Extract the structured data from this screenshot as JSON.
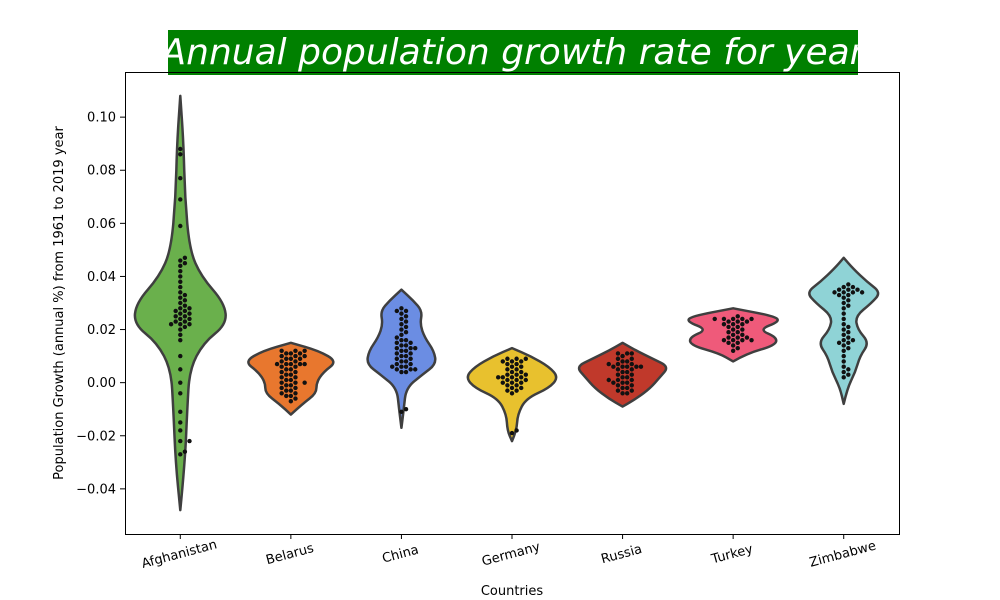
{
  "chart_data": {
    "type": "violin",
    "title": "Annual population growth rate for year",
    "title_bg_color": "#008000",
    "title_color": "#ffffff",
    "xlabel": "Countries",
    "ylabel": "Population Growth (annual %) from 1961 to 2019 year",
    "ylim": [
      -0.057,
      0.117
    ],
    "yticks": [
      -0.04,
      -0.02,
      0.0,
      0.02,
      0.04,
      0.06,
      0.08,
      0.1
    ],
    "ytick_labels": [
      "−0.04",
      "−0.02",
      "0.00",
      "0.02",
      "0.04",
      "0.06",
      "0.08",
      "0.10"
    ],
    "grid": false,
    "categories": [
      "Afghanistan",
      "Belarus",
      "China",
      "Germany",
      "Russia",
      "Turkey",
      "Zimbabwe"
    ],
    "colors": [
      "#6ab04c",
      "#e8772e",
      "#6b8de3",
      "#e8c12e",
      "#c0392b",
      "#ef5a7a",
      "#8fd3d6"
    ],
    "violins": [
      {
        "name": "Afghanistan",
        "min": -0.048,
        "max": 0.108,
        "profile": [
          [
            -0.048,
            0.0
          ],
          [
            -0.03,
            0.1
          ],
          [
            -0.01,
            0.15
          ],
          [
            0.005,
            0.2
          ],
          [
            0.015,
            0.5
          ],
          [
            0.022,
            1.0
          ],
          [
            0.03,
            0.95
          ],
          [
            0.04,
            0.45
          ],
          [
            0.05,
            0.2
          ],
          [
            0.07,
            0.1
          ],
          [
            0.09,
            0.07
          ],
          [
            0.108,
            0.0
          ]
        ],
        "points": [
          -0.027,
          -0.026,
          -0.022,
          -0.022,
          -0.018,
          -0.015,
          -0.011,
          -0.004,
          0.0,
          0.005,
          0.01,
          0.016,
          0.018,
          0.02,
          0.021,
          0.022,
          0.022,
          0.022,
          0.023,
          0.023,
          0.024,
          0.024,
          0.025,
          0.025,
          0.026,
          0.026,
          0.027,
          0.027,
          0.028,
          0.028,
          0.029,
          0.03,
          0.031,
          0.032,
          0.033,
          0.034,
          0.036,
          0.038,
          0.04,
          0.042,
          0.044,
          0.045,
          0.046,
          0.047,
          0.059,
          0.069,
          0.077,
          0.086,
          0.088
        ]
      },
      {
        "name": "Belarus",
        "min": -0.012,
        "max": 0.015,
        "profile": [
          [
            -0.012,
            0.0
          ],
          [
            -0.008,
            0.25
          ],
          [
            -0.004,
            0.55
          ],
          [
            0.0,
            0.55
          ],
          [
            0.004,
            0.7
          ],
          [
            0.008,
            1.0
          ],
          [
            0.012,
            0.6
          ],
          [
            0.015,
            0.0
          ]
        ],
        "points": [
          -0.007,
          -0.006,
          -0.005,
          -0.005,
          -0.004,
          -0.004,
          -0.003,
          -0.003,
          -0.002,
          -0.002,
          -0.001,
          -0.001,
          0.0,
          0.0,
          0.0,
          0.001,
          0.001,
          0.002,
          0.002,
          0.003,
          0.003,
          0.004,
          0.004,
          0.005,
          0.005,
          0.006,
          0.006,
          0.007,
          0.007,
          0.007,
          0.007,
          0.007,
          0.008,
          0.008,
          0.009,
          0.009,
          0.009,
          0.01,
          0.01,
          0.01,
          0.011,
          0.011,
          0.011,
          0.012,
          0.012,
          0.012
        ]
      },
      {
        "name": "China",
        "min": -0.017,
        "max": 0.035,
        "profile": [
          [
            -0.017,
            0.0
          ],
          [
            -0.01,
            0.05
          ],
          [
            -0.002,
            0.1
          ],
          [
            0.003,
            0.45
          ],
          [
            0.007,
            0.75
          ],
          [
            0.012,
            0.7
          ],
          [
            0.017,
            0.5
          ],
          [
            0.022,
            0.4
          ],
          [
            0.027,
            0.45
          ],
          [
            0.031,
            0.25
          ],
          [
            0.035,
            0.0
          ]
        ],
        "points": [
          -0.011,
          -0.01,
          0.004,
          0.004,
          0.005,
          0.005,
          0.005,
          0.006,
          0.006,
          0.006,
          0.007,
          0.007,
          0.008,
          0.008,
          0.009,
          0.009,
          0.01,
          0.01,
          0.011,
          0.011,
          0.012,
          0.012,
          0.013,
          0.013,
          0.013,
          0.014,
          0.014,
          0.015,
          0.015,
          0.016,
          0.016,
          0.017,
          0.018,
          0.019,
          0.02,
          0.021,
          0.022,
          0.023,
          0.024,
          0.025,
          0.026,
          0.027,
          0.027,
          0.028
        ]
      },
      {
        "name": "Germany",
        "min": -0.022,
        "max": 0.013,
        "profile": [
          [
            -0.022,
            0.0
          ],
          [
            -0.018,
            0.1
          ],
          [
            -0.012,
            0.12
          ],
          [
            -0.006,
            0.3
          ],
          [
            -0.002,
            0.8
          ],
          [
            0.002,
            1.0
          ],
          [
            0.006,
            0.8
          ],
          [
            0.01,
            0.4
          ],
          [
            0.013,
            0.0
          ]
        ],
        "points": [
          -0.019,
          -0.018,
          -0.004,
          -0.003,
          -0.003,
          -0.002,
          -0.002,
          -0.001,
          -0.001,
          0.0,
          0.0,
          0.0,
          0.001,
          0.001,
          0.001,
          0.002,
          0.002,
          0.002,
          0.002,
          0.003,
          0.003,
          0.003,
          0.004,
          0.004,
          0.005,
          0.005,
          0.006,
          0.006,
          0.007,
          0.007,
          0.008,
          0.008,
          0.008,
          0.009,
          0.009,
          0.009
        ]
      },
      {
        "name": "Russia",
        "min": -0.009,
        "max": 0.015,
        "profile": [
          [
            -0.009,
            0.0
          ],
          [
            -0.006,
            0.3
          ],
          [
            -0.002,
            0.6
          ],
          [
            0.002,
            0.8
          ],
          [
            0.006,
            1.0
          ],
          [
            0.009,
            0.65
          ],
          [
            0.012,
            0.3
          ],
          [
            0.015,
            0.0
          ]
        ],
        "points": [
          -0.004,
          -0.004,
          -0.003,
          -0.003,
          -0.002,
          -0.002,
          -0.001,
          -0.001,
          0.0,
          0.0,
          0.0,
          0.001,
          0.001,
          0.001,
          0.002,
          0.002,
          0.003,
          0.003,
          0.004,
          0.004,
          0.005,
          0.005,
          0.006,
          0.006,
          0.006,
          0.006,
          0.006,
          0.007,
          0.007,
          0.007,
          0.008,
          0.008,
          0.009,
          0.009,
          0.01,
          0.011,
          0.011,
          0.011
        ]
      },
      {
        "name": "Turkey",
        "min": 0.008,
        "max": 0.028,
        "profile": [
          [
            0.008,
            0.0
          ],
          [
            0.011,
            0.3
          ],
          [
            0.014,
            0.9
          ],
          [
            0.017,
            0.95
          ],
          [
            0.02,
            0.55
          ],
          [
            0.023,
            1.0
          ],
          [
            0.025,
            0.9
          ],
          [
            0.028,
            0.0
          ]
        ],
        "points": [
          0.012,
          0.013,
          0.014,
          0.015,
          0.015,
          0.016,
          0.016,
          0.016,
          0.016,
          0.017,
          0.017,
          0.017,
          0.018,
          0.018,
          0.019,
          0.019,
          0.02,
          0.02,
          0.021,
          0.021,
          0.022,
          0.022,
          0.022,
          0.023,
          0.023,
          0.023,
          0.024,
          0.024,
          0.024,
          0.024,
          0.024,
          0.025
        ]
      },
      {
        "name": "Zimbabwe",
        "min": -0.008,
        "max": 0.047,
        "profile": [
          [
            -0.008,
            0.0
          ],
          [
            -0.002,
            0.08
          ],
          [
            0.004,
            0.25
          ],
          [
            0.01,
            0.35
          ],
          [
            0.015,
            0.55
          ],
          [
            0.02,
            0.3
          ],
          [
            0.025,
            0.25
          ],
          [
            0.03,
            0.6
          ],
          [
            0.034,
            0.8
          ],
          [
            0.038,
            0.5
          ],
          [
            0.043,
            0.2
          ],
          [
            0.047,
            0.0
          ]
        ],
        "points": [
          0.002,
          0.003,
          0.004,
          0.005,
          0.006,
          0.008,
          0.01,
          0.012,
          0.013,
          0.014,
          0.015,
          0.015,
          0.016,
          0.016,
          0.017,
          0.018,
          0.019,
          0.02,
          0.021,
          0.022,
          0.024,
          0.026,
          0.028,
          0.029,
          0.03,
          0.031,
          0.032,
          0.033,
          0.033,
          0.034,
          0.034,
          0.034,
          0.034,
          0.035,
          0.035,
          0.035,
          0.036,
          0.036,
          0.037
        ]
      }
    ]
  }
}
